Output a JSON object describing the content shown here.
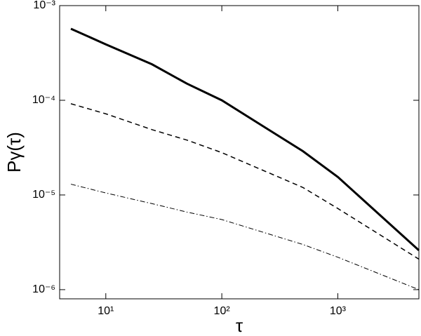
{
  "chart_data": {
    "type": "line",
    "x_label": "τ",
    "y_label": "Pγ(τ)",
    "x": [
      5,
      10,
      25,
      50,
      100,
      500,
      1000,
      5000
    ],
    "series": [
      {
        "color": "#000000",
        "dash": "solid",
        "width": 3,
        "values": [
          0.00057,
          0.00039,
          0.00024,
          0.00015,
          0.0001,
          2.9e-05,
          1.55e-05,
          2.6e-06
        ]
      },
      {
        "color": "#000000",
        "dash": "dashed",
        "width": 1.5,
        "values": [
          9.2e-05,
          7.2e-05,
          4.9e-05,
          3.8e-05,
          2.8e-05,
          1.2e-05,
          7.2e-06,
          2.1e-06
        ]
      },
      {
        "color": "#000000",
        "dash": "dashdot",
        "width": 1,
        "values": [
          1.3e-05,
          1.05e-05,
          8.1e-06,
          6.6e-06,
          5.5e-06,
          3e-06,
          2.2e-06,
          1e-06
        ]
      }
    ],
    "xscale": "log",
    "yscale": "log",
    "xlim": [
      4,
      5000
    ],
    "ylim": [
      8e-07,
      0.001
    ],
    "xticks": [
      {
        "value": 10,
        "label": "10¹"
      },
      {
        "value": 100,
        "label": "10²"
      },
      {
        "value": 1000,
        "label": "10³"
      }
    ],
    "yticks": [
      {
        "value": 1e-06,
        "label": "10⁻⁶"
      },
      {
        "value": 1e-05,
        "label": "10⁻⁵"
      },
      {
        "value": 0.0001,
        "label": "10⁻⁴"
      },
      {
        "value": 0.001,
        "label": "10⁻³"
      }
    ],
    "grid": false
  }
}
